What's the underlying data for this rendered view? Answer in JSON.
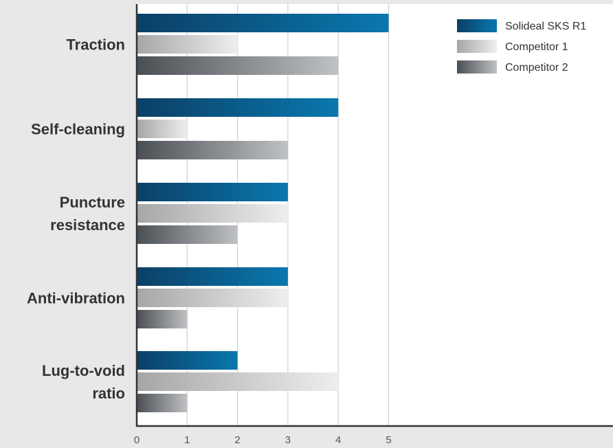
{
  "chart_data": {
    "type": "bar",
    "orientation": "horizontal",
    "categories": [
      [
        "Traction"
      ],
      [
        "Self-cleaning"
      ],
      [
        "Puncture",
        "resistance"
      ],
      [
        "Anti-vibration"
      ],
      [
        "Lug-to-void",
        "ratio"
      ]
    ],
    "series": [
      {
        "name": "Solideal SKS R1",
        "values": [
          5,
          4,
          3,
          3,
          2
        ],
        "color_start": "#0b3f66",
        "color_end": "#0a78ae"
      },
      {
        "name": "Competitor 1",
        "values": [
          2,
          1,
          3,
          3,
          4
        ],
        "color_start": "#a6a6a6",
        "color_end": "#eeeeee"
      },
      {
        "name": "Competitor 2",
        "values": [
          4,
          3,
          2,
          1,
          1
        ],
        "color_start": "#4a4f54",
        "color_end": "#bfc1c3"
      }
    ],
    "x_ticks": [
      "0",
      "1",
      "2",
      "3",
      "4",
      "5"
    ],
    "xlim": [
      0,
      5
    ],
    "grid": true,
    "legend": "top-right",
    "plot_background": "#ffffff",
    "page_background": "#e8e8e8",
    "axis_color": "#333333",
    "grid_color": "#d0d0d0"
  }
}
